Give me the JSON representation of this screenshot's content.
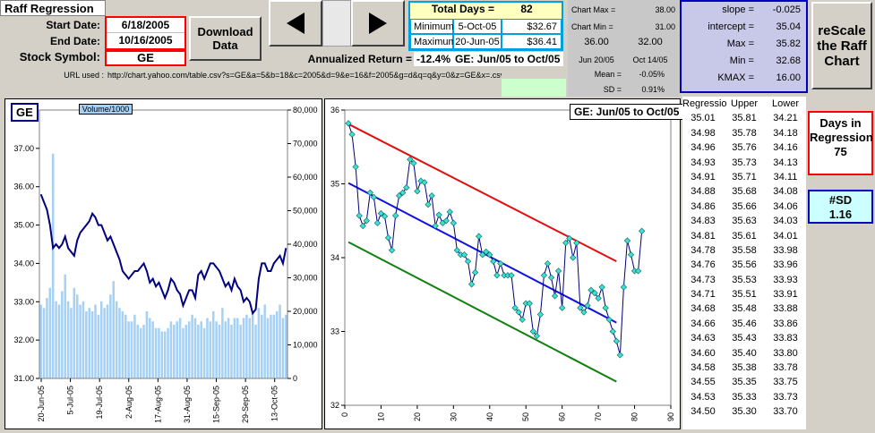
{
  "header": {
    "title": "Raff Regression",
    "start_label": "Start Date:",
    "start_value": "6/18/2005",
    "end_label": "End Date:",
    "end_value": "10/16/2005",
    "symbol_label": "Stock Symbol:",
    "symbol_value": "GE",
    "url_label": "URL used :",
    "url_value": "http://chart.yahoo.com/table.csv?s=GE&a=5&b=18&c=2005&d=9&e=16&f=2005&g=d&q=q&y=0&z=GE&x=.csv",
    "download_label": "Download Data",
    "annualized_label": "Annualized Return =",
    "annualized_value": "-12.4%",
    "period_label": "GE: Jun/05 to Oct/05"
  },
  "stats": {
    "total_days_label": "Total Days =",
    "total_days_value": "82",
    "minimum_label": "Minimum",
    "minimum_date": "5-Oct-05",
    "minimum_value": "$32.67",
    "maximum_label": "Maximum",
    "maximum_date": "20-Jun-05",
    "maximum_value": "$36.41"
  },
  "chart_params": {
    "chart_max_label": "Chart Max =",
    "chart_max_value": "38.00",
    "chart_min_label": "Chart Min =",
    "chart_min_value": "31.00",
    "v1": "36.00",
    "v2": "32.00",
    "date1": "Jun 20/05",
    "date2": "Oct 14/05",
    "mean_label": "Mean =",
    "mean_value": "-0.05%",
    "sd_label": "SD =",
    "sd_value": "0.91%"
  },
  "regression": {
    "slope_label": "slope =",
    "slope_value": "-0.025",
    "intercept_label": "intercept =",
    "intercept_value": "35.04",
    "max_label": "Max =",
    "max_value": "35.82",
    "min_label": "Min =",
    "min_value": "32.68",
    "kmax_label": "KMAX =",
    "kmax_value": "16.00"
  },
  "rescale_label": "reScale the Raff Chart",
  "days_box": {
    "label": "Days in Regression",
    "value": "75"
  },
  "sd_box": {
    "label": "#SD",
    "value": "1.16"
  },
  "table": {
    "headers": [
      "Regressio",
      "Upper",
      "Lower"
    ],
    "regression": [
      "35.01",
      "34.98",
      "34.96",
      "34.93",
      "34.91",
      "34.88",
      "34.86",
      "34.83",
      "34.81",
      "34.78",
      "34.76",
      "34.73",
      "34.71",
      "34.68",
      "34.66",
      "34.63",
      "34.60",
      "34.58",
      "34.55",
      "34.53",
      "34.50"
    ],
    "upper": [
      "35.81",
      "35.78",
      "35.76",
      "35.73",
      "35.71",
      "35.68",
      "35.66",
      "35.63",
      "35.61",
      "35.58",
      "35.56",
      "35.53",
      "35.51",
      "35.48",
      "35.46",
      "35.43",
      "35.40",
      "35.38",
      "35.35",
      "35.33",
      "35.30"
    ],
    "lower": [
      "34.21",
      "34.18",
      "34.16",
      "34.13",
      "34.11",
      "34.08",
      "34.06",
      "34.03",
      "34.01",
      "33.98",
      "33.96",
      "33.93",
      "33.91",
      "33.88",
      "33.86",
      "33.83",
      "33.80",
      "33.78",
      "33.75",
      "33.73",
      "33.70"
    ]
  },
  "chart_data": [
    {
      "type": "bar",
      "title": "GE",
      "legend": "Volume/1000",
      "categories": [
        "20-Jun-05",
        "5-Jul-05",
        "19-Jul-05",
        "2-Aug-05",
        "17-Aug-05",
        "31-Aug-05",
        "15-Sep-05",
        "29-Sep-05",
        "13-Oct-05"
      ],
      "y_left_range": [
        31,
        38
      ],
      "y_left_ticks": [
        "31.00",
        "32.00",
        "33.00",
        "34.00",
        "35.00",
        "36.00",
        "37.00"
      ],
      "y_right_range": [
        0,
        80000
      ],
      "y_right_ticks": [
        "0",
        "10,000",
        "20,000",
        "30,000",
        "40,000",
        "50,000",
        "60,000",
        "70,000",
        "80,000"
      ],
      "volume": [
        22000,
        21000,
        24000,
        27000,
        67000,
        23000,
        22000,
        26000,
        31000,
        23000,
        21000,
        27000,
        25000,
        22000,
        23000,
        20000,
        21000,
        20000,
        22000,
        19000,
        23000,
        21000,
        22000,
        25000,
        29000,
        23000,
        21000,
        20000,
        19000,
        17000,
        17000,
        19000,
        16000,
        15000,
        16000,
        20000,
        18000,
        17000,
        15000,
        15000,
        14000,
        14000,
        15000,
        17000,
        16000,
        17000,
        18000,
        15000,
        16000,
        17000,
        19000,
        18000,
        16000,
        17000,
        15000,
        18000,
        17000,
        20000,
        17000,
        16000,
        21000,
        17000,
        18000,
        16000,
        18000,
        18000,
        16000,
        18000,
        19000,
        18000,
        20000,
        16000,
        21000,
        19000,
        22000,
        18000,
        19000,
        19000,
        20000,
        22000,
        18000,
        19000
      ],
      "price": [
        35.8,
        35.6,
        35.4,
        35.0,
        34.4,
        34.5,
        34.4,
        34.5,
        34.7,
        34.4,
        34.3,
        34.2,
        34.6,
        34.8,
        34.9,
        35.0,
        35.1,
        35.3,
        35.2,
        35.0,
        35.0,
        34.8,
        34.6,
        34.7,
        34.5,
        34.3,
        34.1,
        33.8,
        33.7,
        33.6,
        33.7,
        33.8,
        33.8,
        33.9,
        34.0,
        33.8,
        33.5,
        33.6,
        33.4,
        33.5,
        33.3,
        33.1,
        33.3,
        33.6,
        33.5,
        33.3,
        33.2,
        32.9,
        33.1,
        33.3,
        33.3,
        33.1,
        33.7,
        33.8,
        33.6,
        33.8,
        34.0,
        34.0,
        33.9,
        33.8,
        33.6,
        33.4,
        33.5,
        33.3,
        33.6,
        33.4,
        33.3,
        33.0,
        33.1,
        33.0,
        32.7,
        32.8,
        33.6,
        34.0,
        34.0,
        33.8,
        33.8,
        34.0,
        34.1,
        34.2,
        34.0,
        34.4
      ]
    },
    {
      "type": "scatter",
      "title": "GE: Jun/05 to Oct/05",
      "x_range": [
        0,
        90
      ],
      "x_ticks": [
        "0",
        "10",
        "20",
        "30",
        "40",
        "50",
        "60",
        "70",
        "80",
        "90"
      ],
      "y_range": [
        32,
        36
      ],
      "y_ticks": [
        "32",
        "33",
        "34",
        "35",
        "36"
      ],
      "points": [
        [
          1,
          35.82
        ],
        [
          2,
          35.67
        ],
        [
          3,
          35.23
        ],
        [
          4,
          34.57
        ],
        [
          5,
          34.43
        ],
        [
          6,
          34.5
        ],
        [
          7,
          34.88
        ],
        [
          8,
          34.82
        ],
        [
          9,
          34.47
        ],
        [
          10,
          34.6
        ],
        [
          11,
          34.56
        ],
        [
          12,
          34.27
        ],
        [
          13,
          34.1
        ],
        [
          14,
          34.57
        ],
        [
          15,
          34.84
        ],
        [
          16,
          34.88
        ],
        [
          17,
          34.95
        ],
        [
          18,
          35.33
        ],
        [
          19,
          35.28
        ],
        [
          20,
          34.9
        ],
        [
          21,
          35.04
        ],
        [
          22,
          35.02
        ],
        [
          23,
          34.72
        ],
        [
          24,
          34.84
        ],
        [
          25,
          34.43
        ],
        [
          26,
          34.58
        ],
        [
          27,
          34.47
        ],
        [
          28,
          34.5
        ],
        [
          29,
          34.62
        ],
        [
          30,
          34.47
        ],
        [
          31,
          34.1
        ],
        [
          32,
          34.04
        ],
        [
          33,
          34.04
        ],
        [
          34,
          33.95
        ],
        [
          35,
          33.64
        ],
        [
          36,
          33.8
        ],
        [
          37,
          34.29
        ],
        [
          38,
          34.04
        ],
        [
          39,
          34.08
        ],
        [
          40,
          34.04
        ],
        [
          41,
          33.95
        ],
        [
          42,
          33.76
        ],
        [
          43,
          33.92
        ],
        [
          44,
          33.76
        ],
        [
          45,
          33.76
        ],
        [
          46,
          33.76
        ],
        [
          47,
          33.32
        ],
        [
          48,
          33.26
        ],
        [
          49,
          33.16
        ],
        [
          50,
          33.38
        ],
        [
          51,
          33.38
        ],
        [
          52,
          33.0
        ],
        [
          53,
          32.94
        ],
        [
          54,
          33.23
        ],
        [
          55,
          33.76
        ],
        [
          56,
          33.92
        ],
        [
          57,
          33.73
        ],
        [
          58,
          33.48
        ],
        [
          59,
          33.82
        ],
        [
          60,
          33.32
        ],
        [
          61,
          34.2
        ],
        [
          62,
          34.26
        ],
        [
          63,
          34.0
        ],
        [
          64,
          34.2
        ],
        [
          65,
          33.32
        ],
        [
          66,
          33.26
        ],
        [
          67,
          33.35
        ],
        [
          68,
          33.56
        ],
        [
          69,
          33.52
        ],
        [
          70,
          33.45
        ],
        [
          71,
          33.6
        ],
        [
          72,
          33.32
        ],
        [
          73,
          33.16
        ],
        [
          74,
          33.0
        ],
        [
          75,
          32.87
        ],
        [
          76,
          32.68
        ],
        [
          77,
          33.6
        ],
        [
          78,
          34.23
        ],
        [
          79,
          34.04
        ],
        [
          80,
          33.82
        ],
        [
          81,
          33.82
        ],
        [
          82,
          34.36
        ]
      ],
      "regression_line": [
        [
          1,
          35.01
        ],
        [
          75,
          33.12
        ]
      ],
      "upper_line": [
        [
          1,
          35.81
        ],
        [
          75,
          33.95
        ]
      ],
      "lower_line": [
        [
          1,
          34.21
        ],
        [
          75,
          32.32
        ]
      ],
      "colors": {
        "points": "#40e0d0",
        "upper": "#e01010",
        "regression": "#1010e0",
        "lower": "#108010"
      }
    }
  ]
}
